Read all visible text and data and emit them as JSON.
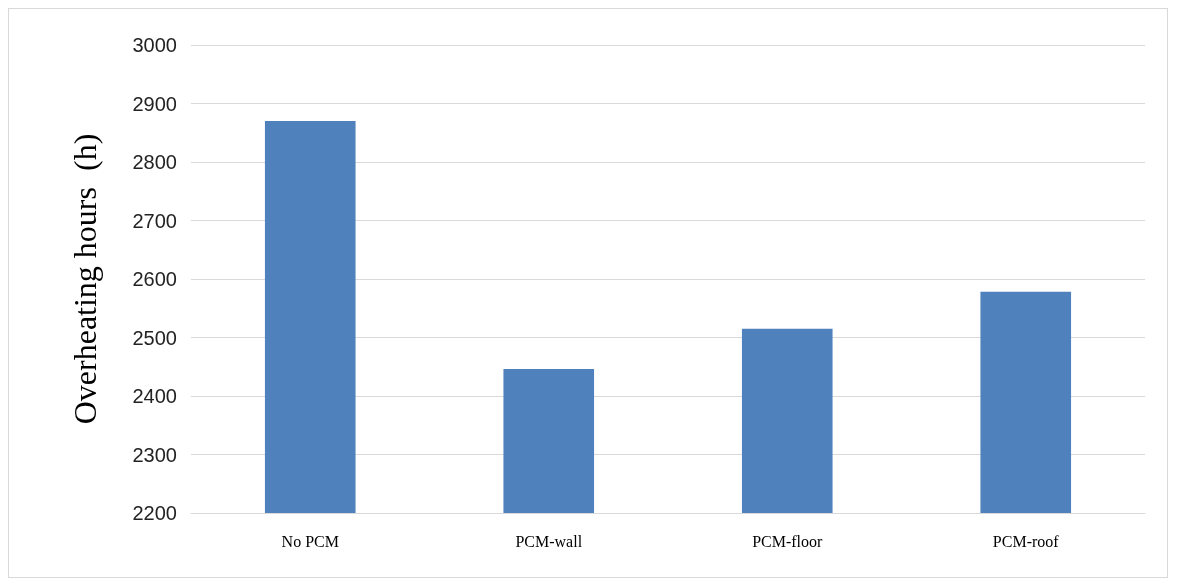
{
  "chart_data": {
    "type": "bar",
    "ylabel": "Overheating hours  (h)",
    "categories": [
      "No PCM",
      "PCM-wall",
      "PCM-floor",
      "PCM-roof"
    ],
    "values": [
      2870,
      2446,
      2515,
      2578
    ],
    "color": "#4f81bd",
    "ylim": [
      2200,
      3000
    ],
    "yticks": [
      2200,
      2300,
      2400,
      2500,
      2600,
      2700,
      2800,
      2900,
      3000
    ],
    "grid": "y"
  }
}
